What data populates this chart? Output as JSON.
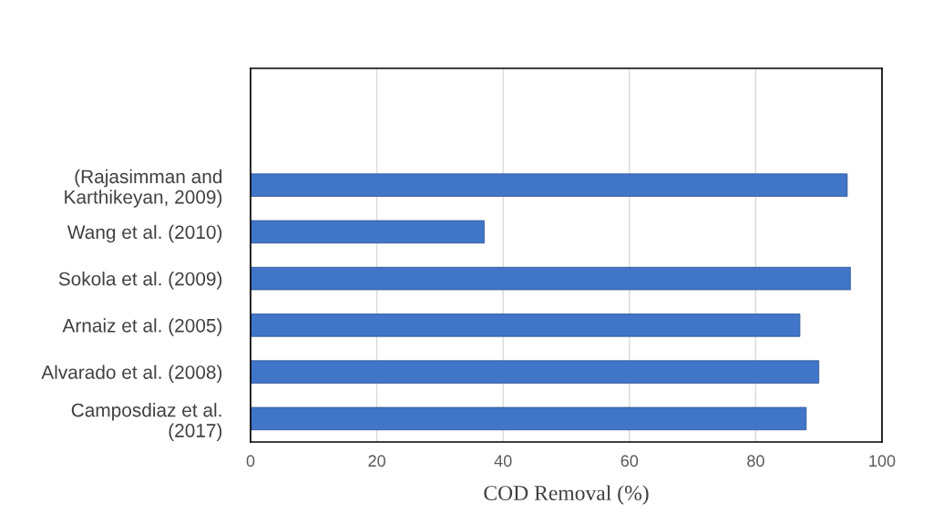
{
  "chart_data": {
    "type": "bar",
    "orientation": "horizontal",
    "xlabel": "COD Removal (%)",
    "categories": [
      null,
      null,
      "(Rajasimman and\nKarthikeyan, 2009)",
      "Wang et al. (2010)",
      "Sokola et al. (2009)",
      "Arnaiz et al. (2005)",
      "Alvarado et al. (2008)",
      "Camposdiaz et al.\n(2017)"
    ],
    "values": [
      null,
      null,
      94.5,
      37,
      95,
      87,
      90,
      88
    ],
    "color": "#4175c8",
    "xlim": [
      0,
      100
    ],
    "xticks": [
      0,
      20,
      40,
      60,
      80,
      100
    ],
    "grid": "x",
    "legend": false
  }
}
